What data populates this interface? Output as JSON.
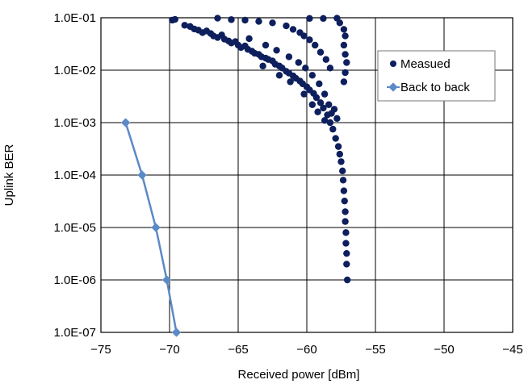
{
  "chart_data": {
    "type": "scatter",
    "xlabel": "Received power [dBm]",
    "ylabel": "Uplink BER",
    "xlim": [
      -75,
      -45
    ],
    "ylim": [
      1e-07,
      0.1
    ],
    "yscale": "log",
    "grid": true,
    "legend_position": "top-right",
    "x_ticks": [
      "−75",
      "−70",
      "−65",
      "−60",
      "−55",
      "−50",
      "−45"
    ],
    "x_tick_values": [
      -75,
      -70,
      -65,
      -60,
      -55,
      -50,
      -45
    ],
    "y_ticks": [
      "1.0E-01",
      "1.0E-02",
      "1.0E-03",
      "1.0E-04",
      "1.0E-05",
      "1.0E-06",
      "1.0E-07"
    ],
    "y_tick_values": [
      0.1,
      0.01,
      0.001,
      0.0001,
      1e-05,
      1e-06,
      1e-07
    ],
    "series": [
      {
        "name": "Measued",
        "style": "markers",
        "color": "#0d1f5c",
        "points": [
          [
            -69.8,
            0.09
          ],
          [
            -69.6,
            0.093
          ],
          [
            -68.9,
            0.072
          ],
          [
            -68.5,
            0.068
          ],
          [
            -68.2,
            0.061
          ],
          [
            -67.9,
            0.058
          ],
          [
            -67.6,
            0.052
          ],
          [
            -67.3,
            0.056
          ],
          [
            -67.0,
            0.05
          ],
          [
            -66.8,
            0.045
          ],
          [
            -66.5,
            0.042
          ],
          [
            -66.2,
            0.047
          ],
          [
            -66.0,
            0.039
          ],
          [
            -65.7,
            0.036
          ],
          [
            -65.5,
            0.033
          ],
          [
            -65.2,
            0.035
          ],
          [
            -65.0,
            0.03
          ],
          [
            -64.8,
            0.027
          ],
          [
            -64.5,
            0.029
          ],
          [
            -64.3,
            0.025
          ],
          [
            -64.0,
            0.023
          ],
          [
            -63.8,
            0.021
          ],
          [
            -63.5,
            0.02
          ],
          [
            -63.3,
            0.018
          ],
          [
            -63.0,
            0.017
          ],
          [
            -62.8,
            0.016
          ],
          [
            -62.5,
            0.015
          ],
          [
            -62.3,
            0.013
          ],
          [
            -62.0,
            0.012
          ],
          [
            -61.8,
            0.011
          ],
          [
            -61.5,
            0.0095
          ],
          [
            -61.3,
            0.0088
          ],
          [
            -61.0,
            0.0078
          ],
          [
            -60.8,
            0.007
          ],
          [
            -60.5,
            0.0062
          ],
          [
            -60.3,
            0.0055
          ],
          [
            -60.0,
            0.0048
          ],
          [
            -59.8,
            0.0042
          ],
          [
            -59.5,
            0.0036
          ],
          [
            -59.3,
            0.003
          ],
          [
            -59.0,
            0.0024
          ],
          [
            -58.8,
            0.0019
          ],
          [
            -58.5,
            0.0014
          ],
          [
            -58.3,
            0.001
          ],
          [
            -58.1,
            0.00075
          ],
          [
            -57.9,
            0.0005
          ],
          [
            -57.7,
            0.00035
          ],
          [
            -57.6,
            0.00025
          ],
          [
            -57.5,
            0.00018
          ],
          [
            -57.4,
            0.00012
          ],
          [
            -57.35,
            8e-05
          ],
          [
            -57.3,
            5e-05
          ],
          [
            -57.25,
            3.2e-05
          ],
          [
            -57.2,
            2e-05
          ],
          [
            -57.2,
            1.3e-05
          ],
          [
            -57.15,
            8e-06
          ],
          [
            -57.15,
            5e-06
          ],
          [
            -57.1,
            3.2e-06
          ],
          [
            -57.1,
            2e-06
          ],
          [
            -57.05,
            1e-06
          ],
          [
            -66.5,
            0.098
          ],
          [
            -65.5,
            0.092
          ],
          [
            -64.5,
            0.09
          ],
          [
            -63.5,
            0.085
          ],
          [
            -62.5,
            0.08
          ],
          [
            -61.5,
            0.07
          ],
          [
            -61.0,
            0.06
          ],
          [
            -60.5,
            0.052
          ],
          [
            -60.2,
            0.045
          ],
          [
            -59.8,
            0.038
          ],
          [
            -59.4,
            0.03
          ],
          [
            -59.0,
            0.022
          ],
          [
            -58.6,
            0.016
          ],
          [
            -58.3,
            0.011
          ],
          [
            -59.8,
            0.097
          ],
          [
            -58.8,
            0.097
          ],
          [
            -57.8,
            0.098
          ],
          [
            -57.6,
            0.08
          ],
          [
            -57.3,
            0.06
          ],
          [
            -57.2,
            0.045
          ],
          [
            -57.3,
            0.03
          ],
          [
            -57.2,
            0.02
          ],
          [
            -57.1,
            0.014
          ],
          [
            -57.2,
            0.009
          ],
          [
            -57.3,
            0.006
          ],
          [
            -63.0,
            0.03
          ],
          [
            -62.2,
            0.024
          ],
          [
            -61.3,
            0.018
          ],
          [
            -60.6,
            0.014
          ],
          [
            -60.1,
            0.011
          ],
          [
            -59.6,
            0.008
          ],
          [
            -59.1,
            0.0055
          ],
          [
            -58.7,
            0.0035
          ],
          [
            -58.4,
            0.0022
          ],
          [
            -58.2,
            0.0015
          ],
          [
            -64.2,
            0.04
          ],
          [
            -63.2,
            0.012
          ],
          [
            -62.0,
            0.008
          ],
          [
            -61.2,
            0.006
          ],
          [
            -60.2,
            0.0035
          ],
          [
            -59.6,
            0.0022
          ],
          [
            -59.2,
            0.0016
          ],
          [
            -58.7,
            0.0011
          ],
          [
            -58.0,
            0.0018
          ],
          [
            -57.8,
            0.0012
          ]
        ]
      },
      {
        "name": "Back to back",
        "style": "line-markers",
        "color": "#5b8ac6",
        "points": [
          [
            -73.2,
            0.001
          ],
          [
            -72.0,
            0.0001
          ],
          [
            -71.0,
            1e-05
          ],
          [
            -70.2,
            1e-06
          ],
          [
            -69.5,
            1e-07
          ]
        ]
      }
    ]
  }
}
